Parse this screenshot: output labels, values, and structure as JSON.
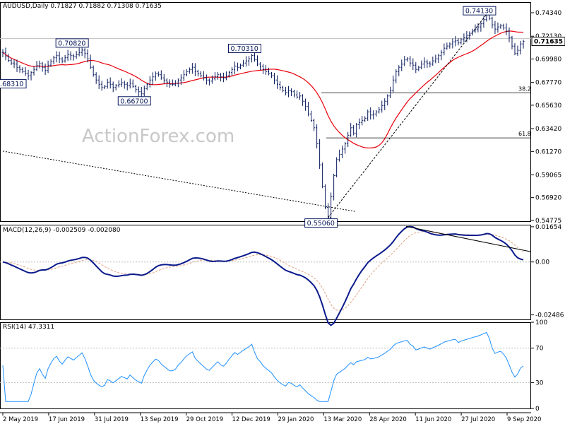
{
  "price_pane": {
    "title": "AUDUSD,Daily  0.71827 0.71882 0.71308 0.71635",
    "watermark": "ActionForex.com",
    "current_price_tag": "0.71635"
  },
  "macd_pane": {
    "title": "MACD(12,26,9) -0.002509 -0.002080"
  },
  "rsi_pane": {
    "title": "RSI(14) 47.3311"
  },
  "chart_data": [
    {
      "type": "candlestick",
      "title": "AUDUSD,Daily  0.71827 0.71882 0.71308 0.71635",
      "ylim": [
        0.547,
        0.7534
      ],
      "y_ticks": [
        "0.74340",
        "0.72130",
        "0.69980",
        "0.67770",
        "0.65630",
        "0.63420",
        "0.61270",
        "0.59065",
        "0.56920",
        "0.54775"
      ],
      "x_ticks": [
        "2 May 2019",
        "17 Jun 2019",
        "31 Jul 2019",
        "13 Sep 2019",
        "29 Oct 2019",
        "12 Dec 2019",
        "29 Jan 2020",
        "13 Mar 2020",
        "28 Apr 2020",
        "11 Jun 2020",
        "27 Jul 2020",
        "9 Sep 2020"
      ],
      "close_series": [
        0.706,
        0.702,
        0.6985,
        0.696,
        0.695,
        0.692,
        0.69,
        0.688,
        0.686,
        0.684,
        0.687,
        0.69,
        0.6935,
        0.6955,
        0.692,
        0.689,
        0.694,
        0.6975,
        0.701,
        0.703,
        0.7,
        0.698,
        0.701,
        0.704,
        0.703,
        0.702,
        0.704,
        0.706,
        0.7082,
        0.705,
        0.7,
        0.692,
        0.685,
        0.68,
        0.676,
        0.673,
        0.674,
        0.678,
        0.676,
        0.673,
        0.6745,
        0.676,
        0.6775,
        0.676,
        0.6745,
        0.677,
        0.674,
        0.671,
        0.669,
        0.667,
        0.672,
        0.676,
        0.68,
        0.683,
        0.686,
        0.685,
        0.682,
        0.68,
        0.678,
        0.676,
        0.676,
        0.677,
        0.68,
        0.682,
        0.685,
        0.688,
        0.69,
        0.692,
        0.688,
        0.686,
        0.684,
        0.682,
        0.68,
        0.679,
        0.681,
        0.683,
        0.685,
        0.683,
        0.682,
        0.684,
        0.687,
        0.69,
        0.693,
        0.692,
        0.694,
        0.696,
        0.698,
        0.7,
        0.7031,
        0.699,
        0.695,
        0.693,
        0.69,
        0.688,
        0.686,
        0.684,
        0.68,
        0.676,
        0.673,
        0.67,
        0.668,
        0.67,
        0.669,
        0.666,
        0.664,
        0.665,
        0.66,
        0.655,
        0.648,
        0.642,
        0.635,
        0.62,
        0.6,
        0.58,
        0.56,
        0.5506,
        0.57,
        0.59,
        0.605,
        0.61,
        0.615,
        0.62,
        0.628,
        0.635,
        0.63,
        0.638,
        0.64,
        0.642,
        0.644,
        0.65,
        0.647,
        0.648,
        0.65,
        0.652,
        0.656,
        0.66,
        0.665,
        0.67,
        0.68,
        0.688,
        0.692,
        0.695,
        0.699,
        0.7,
        0.696,
        0.694,
        0.69,
        0.692,
        0.695,
        0.697,
        0.696,
        0.695,
        0.698,
        0.7,
        0.703,
        0.706,
        0.71,
        0.712,
        0.714,
        0.716,
        0.717,
        0.715,
        0.718,
        0.72,
        0.722,
        0.724,
        0.726,
        0.728,
        0.73,
        0.733,
        0.737,
        0.7413,
        0.738,
        0.732,
        0.728,
        0.73,
        0.731,
        0.729,
        0.726,
        0.72,
        0.712,
        0.705,
        0.708,
        0.714,
        0.7164
      ],
      "ma_red_label": "moving average (red)",
      "ma_black_label": "moving average (dashed black)",
      "fib_levels": [
        {
          "label": "38.2",
          "value": 0.668
        },
        {
          "label": "61.8",
          "value": 0.6255
        }
      ],
      "annotations": [
        {
          "label": "0.68310",
          "value": 0.6831
        },
        {
          "label": "0.70820",
          "value": 0.7082
        },
        {
          "label": "0.66700",
          "value": 0.667
        },
        {
          "label": "0.70310",
          "value": 0.7031
        },
        {
          "label": "0.55060",
          "value": 0.5506
        },
        {
          "label": "0.74130",
          "value": 0.7413
        }
      ]
    },
    {
      "type": "line",
      "title": "MACD(12,26,9) -0.002509 -0.002080",
      "ylim": [
        -0.027,
        0.0175
      ],
      "y_ticks": [
        "0.01654",
        "0.00",
        "-0.02486"
      ]
    },
    {
      "type": "line",
      "title": "RSI(14) 47.3311",
      "ylim": [
        0,
        100
      ],
      "y_ticks": [
        "100",
        "70",
        "30",
        "0"
      ],
      "levels": [
        70,
        30
      ]
    }
  ]
}
